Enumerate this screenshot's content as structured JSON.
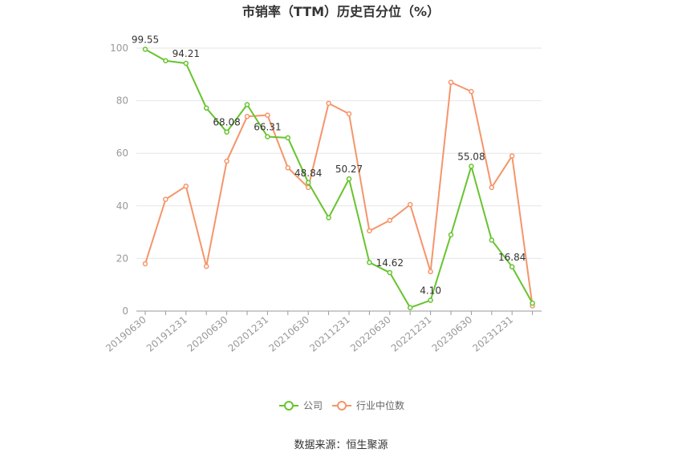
{
  "chart_data": {
    "type": "line",
    "title": "市销率（TTM）历史百分位（%）",
    "source": "数据来源：恒生聚源",
    "ylim": [
      0,
      100
    ],
    "yticks": [
      0,
      20,
      40,
      60,
      80,
      100
    ],
    "grid": true,
    "legend_position": "bottom",
    "x": [
      "20190630",
      "20190930",
      "20191231",
      "20200331",
      "20200630",
      "20200930",
      "20201231",
      "20210331",
      "20210630",
      "20210930",
      "20211231",
      "20220331",
      "20220630",
      "20220930",
      "20221231",
      "20230331",
      "20230630",
      "20230930",
      "20231231",
      "20240331"
    ],
    "x_tick_labels": [
      "20190630",
      "20191231",
      "20200630",
      "20201231",
      "20210630",
      "20211231",
      "20220630",
      "20221231",
      "20230630",
      "20231231"
    ],
    "series": [
      {
        "name": "公司",
        "color": "#66c42e",
        "values": [
          99.55,
          95.2,
          94.21,
          77.2,
          68.08,
          78.5,
          66.31,
          65.9,
          48.84,
          35.5,
          50.27,
          18.5,
          14.62,
          1.3,
          4.1,
          29.0,
          55.08,
          27.0,
          16.84,
          3.0
        ],
        "labels": [
          {
            "index": 0,
            "text": "99.55"
          },
          {
            "index": 2,
            "text": "94.21"
          },
          {
            "index": 4,
            "text": "68.08"
          },
          {
            "index": 6,
            "text": "66.31"
          },
          {
            "index": 8,
            "text": "48.84"
          },
          {
            "index": 10,
            "text": "50.27"
          },
          {
            "index": 12,
            "text": "14.62"
          },
          {
            "index": 14,
            "text": "4.10"
          },
          {
            "index": 16,
            "text": "55.08"
          },
          {
            "index": 18,
            "text": "16.84"
          }
        ]
      },
      {
        "name": "行业中位数",
        "color": "#f5956a",
        "values": [
          18.0,
          42.5,
          47.5,
          17.0,
          57.0,
          74.0,
          74.5,
          54.5,
          47.0,
          79.0,
          75.0,
          30.5,
          34.5,
          40.5,
          15.0,
          87.0,
          83.5,
          47.0,
          59.0,
          2.0
        ],
        "labels": []
      }
    ]
  }
}
